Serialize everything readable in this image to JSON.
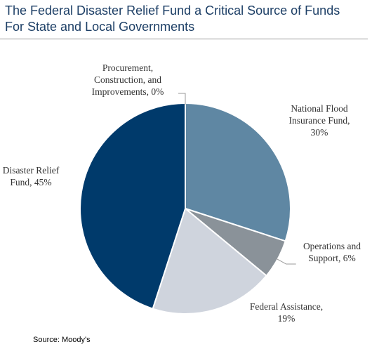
{
  "chart_data": {
    "type": "pie",
    "title": [
      "The Federal Disaster Relief Fund a Critical Source of Funds",
      "For State and Local Governments"
    ],
    "categories": [
      "National Flood Insurance Fund",
      "Operations and Support",
      "Federal Assistance",
      "Disaster Relief Fund",
      "Procurement, Construction, and Improvements"
    ],
    "values": [
      30,
      6,
      19,
      45,
      0
    ],
    "value_labels": [
      "30%",
      "6%",
      "19%",
      "45%",
      "0%"
    ],
    "colors": [
      "#5f87a3",
      "#8a9299",
      "#cfd4dd",
      "#003a6b",
      "#6b7f99"
    ],
    "source": "Source: Moody's"
  }
}
